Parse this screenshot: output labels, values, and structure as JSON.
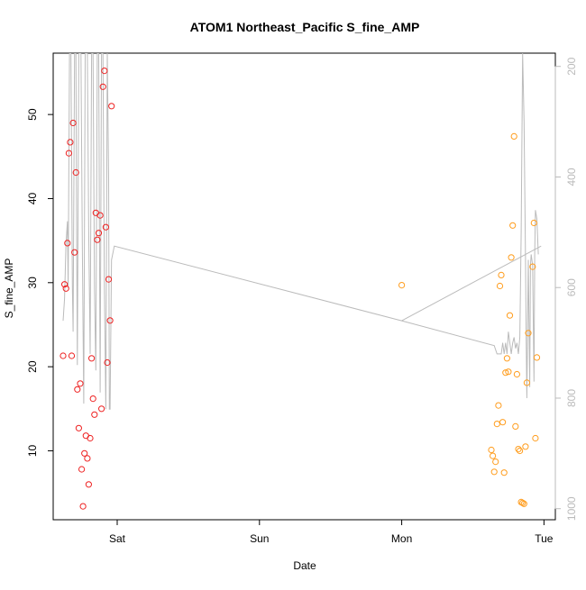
{
  "chart_data": {
    "type": "scatter",
    "title": "ATOM1 Northeast_Pacific S_fine_AMP",
    "xlabel": "Date",
    "ylabel": "S_fine_AMP",
    "x_ticks": [
      "Sat",
      "Sun",
      "Mon",
      "Tue"
    ],
    "x_tick_values": [
      1.0,
      2.0,
      3.0,
      4.0
    ],
    "xlim": [
      0.55,
      4.08
    ],
    "y_ticks": [
      10,
      20,
      30,
      40,
      50
    ],
    "ylim": [
      1.8,
      57.3
    ],
    "y2_ticks": [
      200,
      400,
      600,
      800,
      1000
    ],
    "y2lim": [
      1020,
      176
    ],
    "grid": false,
    "colors": {
      "red": "#ee2222",
      "orange": "#ff9d1e",
      "line": "#bbbbbb",
      "axis": "#000000",
      "axis2": "#bbbbbb"
    },
    "series": [
      {
        "color": "red",
        "points": [
          [
            0.62,
            21.3
          ],
          [
            0.63,
            29.8
          ],
          [
            0.64,
            29.3
          ],
          [
            0.65,
            34.7
          ],
          [
            0.66,
            45.4
          ],
          [
            0.67,
            46.7
          ],
          [
            0.68,
            21.3
          ],
          [
            0.69,
            49.0
          ],
          [
            0.7,
            33.6
          ],
          [
            0.71,
            43.1
          ],
          [
            0.72,
            17.3
          ],
          [
            0.73,
            12.7
          ],
          [
            0.74,
            18.0
          ],
          [
            0.75,
            7.8
          ],
          [
            0.76,
            3.4
          ],
          [
            0.77,
            9.7
          ],
          [
            0.78,
            11.8
          ],
          [
            0.79,
            9.1
          ],
          [
            0.8,
            6.0
          ],
          [
            0.81,
            11.5
          ],
          [
            0.82,
            21.0
          ],
          [
            0.83,
            16.2
          ],
          [
            0.84,
            14.3
          ],
          [
            0.85,
            38.3
          ],
          [
            0.86,
            35.1
          ],
          [
            0.87,
            35.9
          ],
          [
            0.88,
            38.0
          ],
          [
            0.89,
            15.0
          ],
          [
            0.9,
            53.3
          ],
          [
            0.91,
            55.2
          ],
          [
            0.92,
            36.6
          ],
          [
            0.93,
            20.5
          ],
          [
            0.94,
            30.4
          ],
          [
            0.95,
            25.5
          ],
          [
            0.96,
            51.0
          ]
        ]
      },
      {
        "color": "orange",
        "points": [
          [
            3.0,
            29.7
          ],
          [
            3.63,
            10.1
          ],
          [
            3.64,
            9.4
          ],
          [
            3.65,
            7.5
          ],
          [
            3.66,
            8.7
          ],
          [
            3.67,
            13.2
          ],
          [
            3.68,
            15.4
          ],
          [
            3.69,
            29.6
          ],
          [
            3.7,
            30.9
          ],
          [
            3.71,
            13.4
          ],
          [
            3.72,
            7.4
          ],
          [
            3.73,
            19.3
          ],
          [
            3.74,
            21.0
          ],
          [
            3.75,
            19.4
          ],
          [
            3.76,
            26.1
          ],
          [
            3.77,
            33.0
          ],
          [
            3.78,
            36.8
          ],
          [
            3.79,
            47.4
          ],
          [
            3.8,
            12.9
          ],
          [
            3.81,
            19.1
          ],
          [
            3.82,
            10.2
          ],
          [
            3.83,
            10.0
          ],
          [
            3.84,
            3.9
          ],
          [
            3.85,
            3.8
          ],
          [
            3.86,
            3.7
          ],
          [
            3.87,
            10.5
          ],
          [
            3.88,
            18.1
          ],
          [
            3.89,
            24.0
          ],
          [
            3.92,
            31.9
          ],
          [
            3.93,
            37.1
          ],
          [
            3.94,
            11.5
          ],
          [
            3.95,
            21.1
          ]
        ]
      }
    ],
    "line_series": {
      "color": "line",
      "axis": "y2",
      "points": [
        [
          0.62,
          660
        ],
        [
          0.63,
          620
        ],
        [
          0.64,
          520
        ],
        [
          0.65,
          480
        ],
        [
          0.655,
          600
        ],
        [
          0.665,
          176
        ],
        [
          0.675,
          176
        ],
        [
          0.685,
          600
        ],
        [
          0.69,
          680
        ],
        [
          0.7,
          176
        ],
        [
          0.71,
          176
        ],
        [
          0.715,
          500
        ],
        [
          0.72,
          740
        ],
        [
          0.73,
          176
        ],
        [
          0.745,
          176
        ],
        [
          0.755,
          520
        ],
        [
          0.765,
          810
        ],
        [
          0.775,
          176
        ],
        [
          0.79,
          176
        ],
        [
          0.8,
          500
        ],
        [
          0.81,
          720
        ],
        [
          0.82,
          176
        ],
        [
          0.83,
          176
        ],
        [
          0.84,
          600
        ],
        [
          0.85,
          750
        ],
        [
          0.86,
          176
        ],
        [
          0.87,
          176
        ],
        [
          0.875,
          500
        ],
        [
          0.88,
          790
        ],
        [
          0.89,
          176
        ],
        [
          0.9,
          176
        ],
        [
          0.91,
          600
        ],
        [
          0.92,
          820
        ],
        [
          0.93,
          176
        ],
        [
          0.94,
          400
        ],
        [
          0.945,
          820
        ],
        [
          0.95,
          820
        ],
        [
          0.96,
          550
        ],
        [
          0.98,
          525
        ],
        [
          3.0,
          660
        ],
        [
          3.65,
          705
        ],
        [
          3.67,
          720
        ],
        [
          3.7,
          720
        ],
        [
          3.71,
          700
        ],
        [
          3.72,
          720
        ],
        [
          3.73,
          700
        ],
        [
          3.74,
          720
        ],
        [
          3.75,
          680
        ],
        [
          3.76,
          700
        ],
        [
          3.77,
          720
        ],
        [
          3.78,
          700
        ],
        [
          3.79,
          690
        ],
        [
          3.8,
          710
        ],
        [
          3.81,
          700
        ],
        [
          3.82,
          720
        ],
        [
          3.83,
          690
        ],
        [
          3.84,
          500
        ],
        [
          3.85,
          176
        ],
        [
          3.86,
          300
        ],
        [
          3.87,
          550
        ],
        [
          3.875,
          700
        ],
        [
          3.88,
          800
        ],
        [
          3.89,
          550
        ],
        [
          3.9,
          780
        ],
        [
          3.905,
          560
        ],
        [
          3.91,
          540
        ],
        [
          3.92,
          560
        ],
        [
          3.93,
          770
        ],
        [
          3.935,
          540
        ],
        [
          3.94,
          460
        ],
        [
          3.95,
          476
        ],
        [
          3.96,
          540
        ]
      ],
      "extra_segment": [
        [
          3.0,
          660
        ],
        [
          3.98,
          525
        ]
      ]
    }
  }
}
